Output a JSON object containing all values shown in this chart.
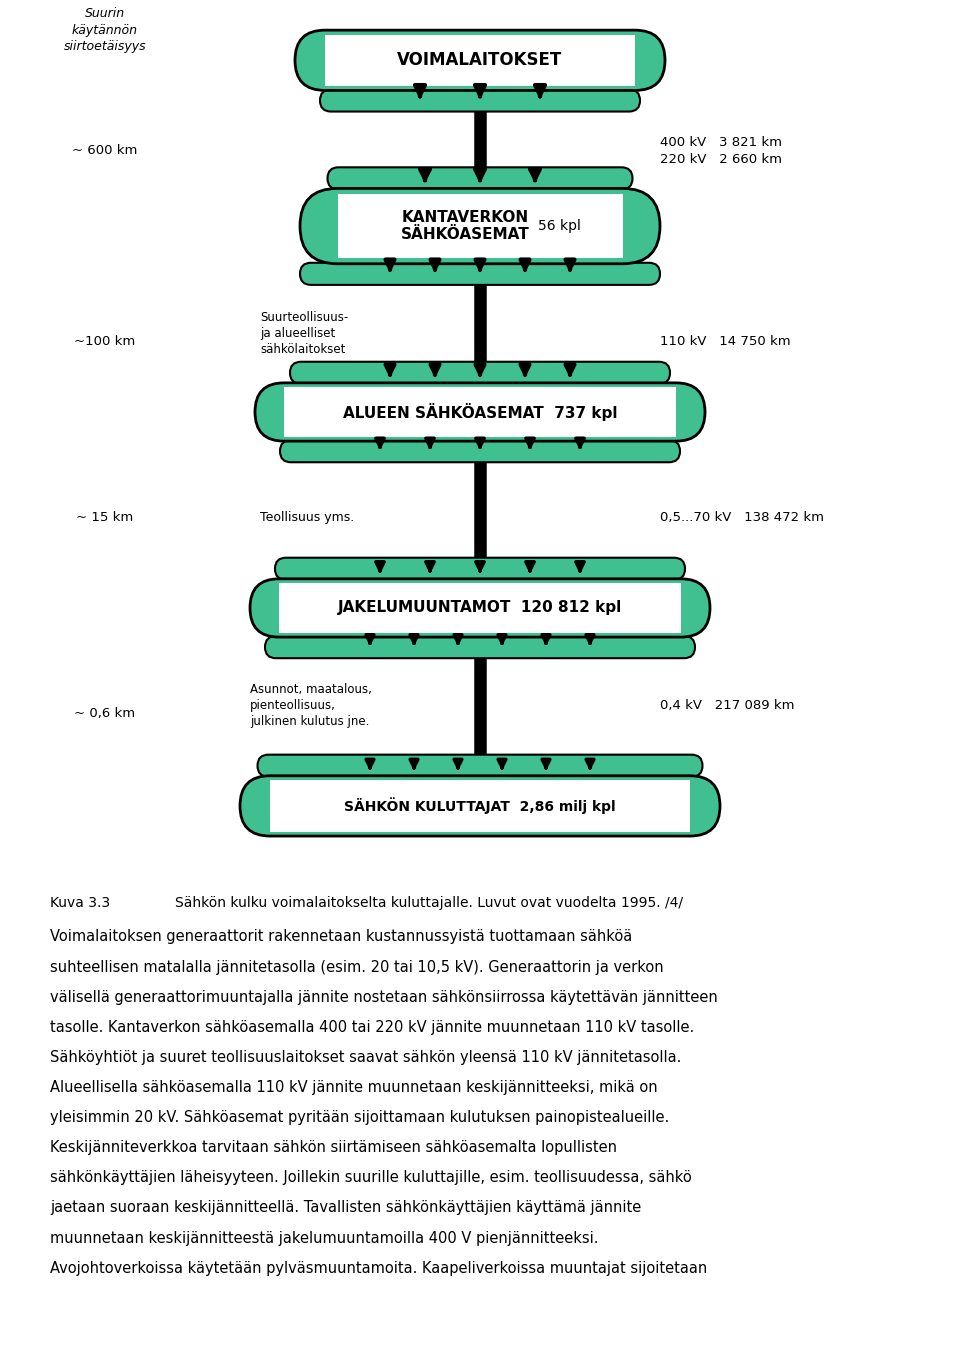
{
  "bg_color": "#ffffff",
  "teal_color": "#40c090",
  "black_color": "#000000",
  "caption": "Kuva 3.3        Sähkön kulku voimalaitokselta kuluttajalle. Luvut ovat vuodelta 1995. /4/",
  "body_lines": [
    "Voimalaitoksen generaattorit rakennetaan kustannussyistä tuottamaan sähköä",
    "suhteellisen matalalla jännitetasolla (esim. 20 tai 10,5 kV). Generaattorin ja verkon",
    "välisellä generaattorimuuntajalla jännite nostetaan sähkönsiirrossa käytettävän jännitteen",
    "tasolle. Kantaverkon sähköasemalla 400 tai 220 kV jännite muunnetaan 110 kV tasolle.",
    "Sähköyhtiöt ja suuret teollisuuslaitokset saavat sähkön yleensä 110 kV jännitetasolla.",
    "Alueellisella sähköasemalla 110 kV jännite muunnetaan keskijännitteeksi, mikä on",
    "yleisimmin 20 kV. Sähköasemat pyritään sijoittamaan kulutuksen painopistealueille.",
    "Keskijänniteverkkoa tarvitaan sähkön siirtämiseen sähköasemalta lopullisten",
    "sähkönkäyttäjien läheisyyteen. Joillekin suurille kuluttajille, esim. teollisuudessa, sähkö",
    "jaetaan suoraan keskijännitteellä. Tavallisten sähkönkäyttäjien käyttämä jännite",
    "muunnetaan keskijännitteestä jakelumuuntamoilla 400 V pienjännitteeksi.",
    "Avojohtoverkoissa käytetään pylväsmuuntamoita. Kaapeliverkoissa muuntajat sijoitetaan"
  ]
}
